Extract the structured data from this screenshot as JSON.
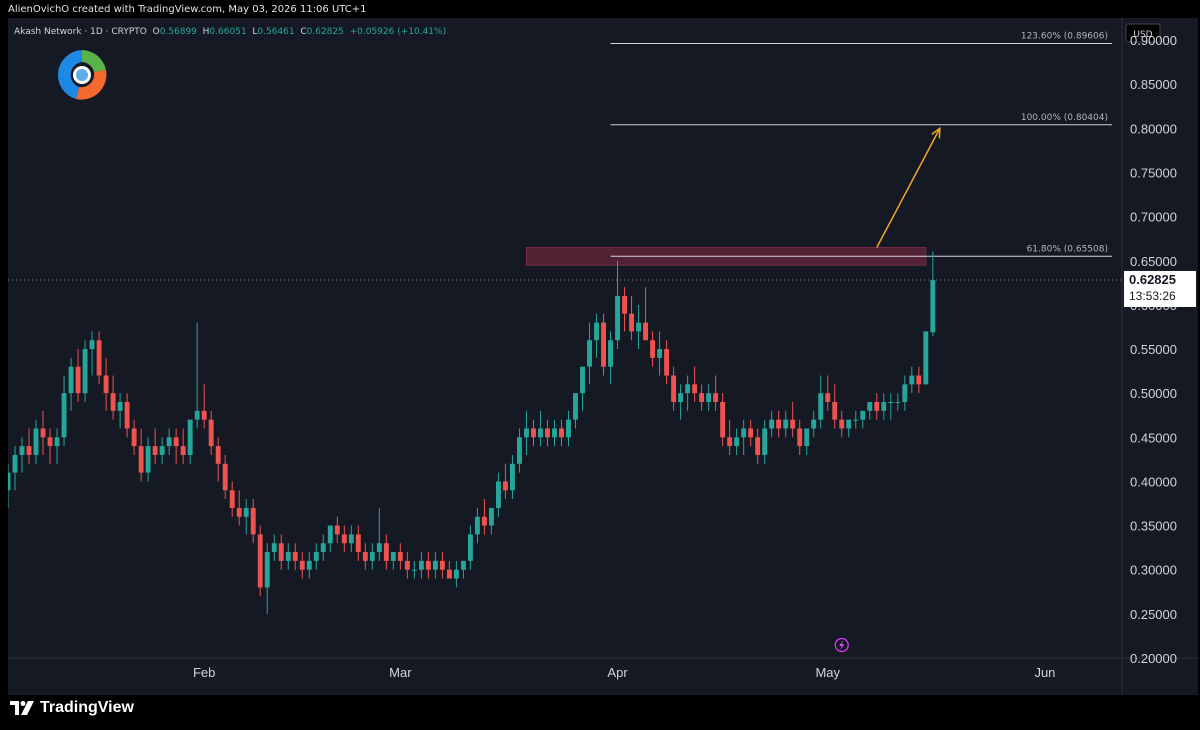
{
  "caption": "AlienOvichO created with TradingView.com, May 03, 2026 11:06 UTC+1",
  "symbol": {
    "name": "Akash Network",
    "interval": "1D",
    "exchange": "CRYPTO",
    "title_line": "Akash Network · 1D · CRYPTO",
    "open_label": "O",
    "open": "0.56899",
    "high_label": "H",
    "high": "0.66051",
    "low_label": "L",
    "low": "0.56461",
    "close_label": "C",
    "close": "0.62825",
    "change": "+0.05926 (+10.41%)"
  },
  "currency": "USD",
  "last_price": "0.62825",
  "countdown": "13:53:26",
  "branding": "TradingView",
  "colors": {
    "up": "#26a69a",
    "down": "#ef5350",
    "background": "#151924",
    "grid": "#1e222d",
    "fib_line": "#d1d4dc",
    "arrow": "#f5a623",
    "zone": "#5d2437",
    "event_icon": "#e040fb"
  },
  "icons": [
    "tradingview-logo-icon",
    "lightning-event-icon",
    "akash-logo-icon"
  ],
  "chart_data": {
    "type": "candlestick",
    "title": "",
    "xlabel": "",
    "ylabel": "",
    "ylim": [
      0.2,
      0.925
    ],
    "grid": false,
    "y_ticks": [
      "0.20000",
      "0.25000",
      "0.30000",
      "0.35000",
      "0.40000",
      "0.45000",
      "0.50000",
      "0.55000",
      "0.60000",
      "0.65000",
      "0.70000",
      "0.75000",
      "0.80000",
      "0.85000",
      "0.90000"
    ],
    "x_ticks": [
      {
        "label": "Feb",
        "date": "2026-02-01"
      },
      {
        "label": "Mar",
        "date": "2026-03-01"
      },
      {
        "label": "Apr",
        "date": "2026-04-01"
      },
      {
        "label": "May",
        "date": "2026-05-01"
      },
      {
        "label": "Jun",
        "date": "2026-06-01"
      }
    ],
    "x_range": [
      "2026-01-04",
      "2026-06-12"
    ],
    "first_candle_date": "2026-01-04",
    "candles": [
      [
        0.39,
        0.42,
        0.37,
        0.41
      ],
      [
        0.41,
        0.44,
        0.39,
        0.43
      ],
      [
        0.43,
        0.45,
        0.41,
        0.44
      ],
      [
        0.44,
        0.46,
        0.42,
        0.43
      ],
      [
        0.43,
        0.47,
        0.42,
        0.46
      ],
      [
        0.46,
        0.48,
        0.43,
        0.45
      ],
      [
        0.45,
        0.46,
        0.42,
        0.44
      ],
      [
        0.44,
        0.46,
        0.42,
        0.45
      ],
      [
        0.45,
        0.52,
        0.44,
        0.5
      ],
      [
        0.5,
        0.54,
        0.48,
        0.53
      ],
      [
        0.53,
        0.55,
        0.49,
        0.5
      ],
      [
        0.5,
        0.56,
        0.49,
        0.55
      ],
      [
        0.55,
        0.57,
        0.52,
        0.56
      ],
      [
        0.56,
        0.57,
        0.51,
        0.52
      ],
      [
        0.52,
        0.54,
        0.48,
        0.5
      ],
      [
        0.5,
        0.52,
        0.47,
        0.48
      ],
      [
        0.48,
        0.5,
        0.46,
        0.49
      ],
      [
        0.49,
        0.5,
        0.45,
        0.46
      ],
      [
        0.46,
        0.47,
        0.43,
        0.44
      ],
      [
        0.44,
        0.46,
        0.4,
        0.41
      ],
      [
        0.41,
        0.45,
        0.4,
        0.44
      ],
      [
        0.44,
        0.46,
        0.42,
        0.43
      ],
      [
        0.43,
        0.45,
        0.42,
        0.44
      ],
      [
        0.44,
        0.46,
        0.43,
        0.45
      ],
      [
        0.45,
        0.46,
        0.42,
        0.44
      ],
      [
        0.44,
        0.46,
        0.42,
        0.43
      ],
      [
        0.43,
        0.47,
        0.42,
        0.47
      ],
      [
        0.47,
        0.58,
        0.46,
        0.48
      ],
      [
        0.48,
        0.51,
        0.46,
        0.47
      ],
      [
        0.47,
        0.48,
        0.43,
        0.44
      ],
      [
        0.44,
        0.45,
        0.4,
        0.42
      ],
      [
        0.42,
        0.43,
        0.38,
        0.39
      ],
      [
        0.39,
        0.4,
        0.36,
        0.37
      ],
      [
        0.37,
        0.39,
        0.35,
        0.36
      ],
      [
        0.36,
        0.38,
        0.34,
        0.37
      ],
      [
        0.37,
        0.38,
        0.33,
        0.34
      ],
      [
        0.34,
        0.35,
        0.27,
        0.28
      ],
      [
        0.28,
        0.33,
        0.25,
        0.32
      ],
      [
        0.32,
        0.34,
        0.31,
        0.33
      ],
      [
        0.33,
        0.34,
        0.3,
        0.31
      ],
      [
        0.31,
        0.33,
        0.3,
        0.32
      ],
      [
        0.32,
        0.33,
        0.3,
        0.31
      ],
      [
        0.31,
        0.32,
        0.29,
        0.3
      ],
      [
        0.3,
        0.32,
        0.29,
        0.31
      ],
      [
        0.31,
        0.33,
        0.3,
        0.32
      ],
      [
        0.32,
        0.34,
        0.31,
        0.33
      ],
      [
        0.33,
        0.35,
        0.32,
        0.35
      ],
      [
        0.35,
        0.36,
        0.33,
        0.34
      ],
      [
        0.34,
        0.35,
        0.32,
        0.33
      ],
      [
        0.33,
        0.35,
        0.32,
        0.34
      ],
      [
        0.34,
        0.35,
        0.31,
        0.32
      ],
      [
        0.32,
        0.33,
        0.3,
        0.31
      ],
      [
        0.31,
        0.33,
        0.3,
        0.32
      ],
      [
        0.32,
        0.37,
        0.31,
        0.33
      ],
      [
        0.33,
        0.34,
        0.3,
        0.31
      ],
      [
        0.31,
        0.32,
        0.3,
        0.32
      ],
      [
        0.32,
        0.33,
        0.3,
        0.31
      ],
      [
        0.31,
        0.32,
        0.29,
        0.3
      ],
      [
        0.3,
        0.31,
        0.29,
        0.3
      ],
      [
        0.3,
        0.32,
        0.29,
        0.31
      ],
      [
        0.31,
        0.32,
        0.29,
        0.3
      ],
      [
        0.3,
        0.32,
        0.29,
        0.31
      ],
      [
        0.31,
        0.32,
        0.29,
        0.3
      ],
      [
        0.3,
        0.31,
        0.29,
        0.29
      ],
      [
        0.29,
        0.31,
        0.28,
        0.3
      ],
      [
        0.3,
        0.31,
        0.29,
        0.31
      ],
      [
        0.31,
        0.35,
        0.3,
        0.34
      ],
      [
        0.34,
        0.37,
        0.33,
        0.36
      ],
      [
        0.36,
        0.38,
        0.34,
        0.35
      ],
      [
        0.35,
        0.37,
        0.34,
        0.37
      ],
      [
        0.37,
        0.41,
        0.36,
        0.4
      ],
      [
        0.4,
        0.42,
        0.38,
        0.39
      ],
      [
        0.39,
        0.43,
        0.38,
        0.42
      ],
      [
        0.42,
        0.46,
        0.41,
        0.45
      ],
      [
        0.45,
        0.48,
        0.43,
        0.46
      ],
      [
        0.46,
        0.47,
        0.44,
        0.45
      ],
      [
        0.45,
        0.48,
        0.44,
        0.46
      ],
      [
        0.46,
        0.47,
        0.44,
        0.45
      ],
      [
        0.45,
        0.47,
        0.44,
        0.46
      ],
      [
        0.46,
        0.47,
        0.44,
        0.45
      ],
      [
        0.45,
        0.48,
        0.44,
        0.47
      ],
      [
        0.47,
        0.5,
        0.46,
        0.5
      ],
      [
        0.5,
        0.53,
        0.48,
        0.53
      ],
      [
        0.53,
        0.58,
        0.51,
        0.56
      ],
      [
        0.56,
        0.59,
        0.54,
        0.58
      ],
      [
        0.58,
        0.59,
        0.52,
        0.53
      ],
      [
        0.53,
        0.57,
        0.51,
        0.56
      ],
      [
        0.56,
        0.65,
        0.55,
        0.61
      ],
      [
        0.61,
        0.62,
        0.57,
        0.59
      ],
      [
        0.59,
        0.61,
        0.56,
        0.57
      ],
      [
        0.57,
        0.6,
        0.55,
        0.58
      ],
      [
        0.58,
        0.62,
        0.56,
        0.56
      ],
      [
        0.56,
        0.57,
        0.53,
        0.54
      ],
      [
        0.54,
        0.57,
        0.52,
        0.55
      ],
      [
        0.55,
        0.56,
        0.51,
        0.52
      ],
      [
        0.52,
        0.53,
        0.48,
        0.49
      ],
      [
        0.49,
        0.51,
        0.47,
        0.5
      ],
      [
        0.5,
        0.52,
        0.48,
        0.51
      ],
      [
        0.51,
        0.53,
        0.49,
        0.5
      ],
      [
        0.5,
        0.51,
        0.48,
        0.49
      ],
      [
        0.49,
        0.51,
        0.48,
        0.5
      ],
      [
        0.5,
        0.52,
        0.48,
        0.49
      ],
      [
        0.49,
        0.5,
        0.44,
        0.45
      ],
      [
        0.45,
        0.47,
        0.43,
        0.44
      ],
      [
        0.44,
        0.46,
        0.43,
        0.45
      ],
      [
        0.45,
        0.47,
        0.43,
        0.46
      ],
      [
        0.46,
        0.47,
        0.44,
        0.45
      ],
      [
        0.45,
        0.46,
        0.42,
        0.43
      ],
      [
        0.43,
        0.47,
        0.42,
        0.46
      ],
      [
        0.46,
        0.48,
        0.45,
        0.47
      ],
      [
        0.47,
        0.48,
        0.45,
        0.46
      ],
      [
        0.46,
        0.48,
        0.45,
        0.47
      ],
      [
        0.47,
        0.49,
        0.45,
        0.46
      ],
      [
        0.46,
        0.47,
        0.43,
        0.44
      ],
      [
        0.44,
        0.46,
        0.43,
        0.46
      ],
      [
        0.46,
        0.48,
        0.45,
        0.47
      ],
      [
        0.47,
        0.52,
        0.46,
        0.5
      ],
      [
        0.5,
        0.52,
        0.48,
        0.49
      ],
      [
        0.49,
        0.51,
        0.46,
        0.47
      ],
      [
        0.47,
        0.48,
        0.45,
        0.46
      ],
      [
        0.46,
        0.47,
        0.45,
        0.47
      ],
      [
        0.47,
        0.48,
        0.46,
        0.47
      ],
      [
        0.47,
        0.48,
        0.46,
        0.48
      ],
      [
        0.48,
        0.49,
        0.47,
        0.49
      ],
      [
        0.49,
        0.5,
        0.47,
        0.48
      ],
      [
        0.48,
        0.5,
        0.47,
        0.49
      ],
      [
        0.49,
        0.5,
        0.47,
        0.49
      ],
      [
        0.49,
        0.5,
        0.48,
        0.49
      ],
      [
        0.49,
        0.52,
        0.48,
        0.51
      ],
      [
        0.51,
        0.53,
        0.5,
        0.52
      ],
      [
        0.52,
        0.53,
        0.5,
        0.51
      ],
      [
        0.51,
        0.57,
        0.51,
        0.57
      ],
      [
        0.56899,
        0.66051,
        0.56461,
        0.62825
      ]
    ],
    "fib_levels": [
      {
        "label": "61.80% (0.65508)",
        "value": 0.65508
      },
      {
        "label": "100.00% (0.80404)",
        "value": 0.80404
      },
      {
        "label": "123.60% (0.89606)",
        "value": 0.89606
      }
    ],
    "fib_start_date": "2026-03-31",
    "resistance_zone": {
      "from_date": "2026-03-19",
      "to_date": "2026-05-15",
      "low": 0.645,
      "high": 0.665
    },
    "projection_arrow": {
      "from_date": "2026-05-08",
      "from_value": 0.665,
      "to_date": "2026-05-17",
      "to_value": 0.8
    },
    "event_marker_date": "2026-05-01"
  }
}
